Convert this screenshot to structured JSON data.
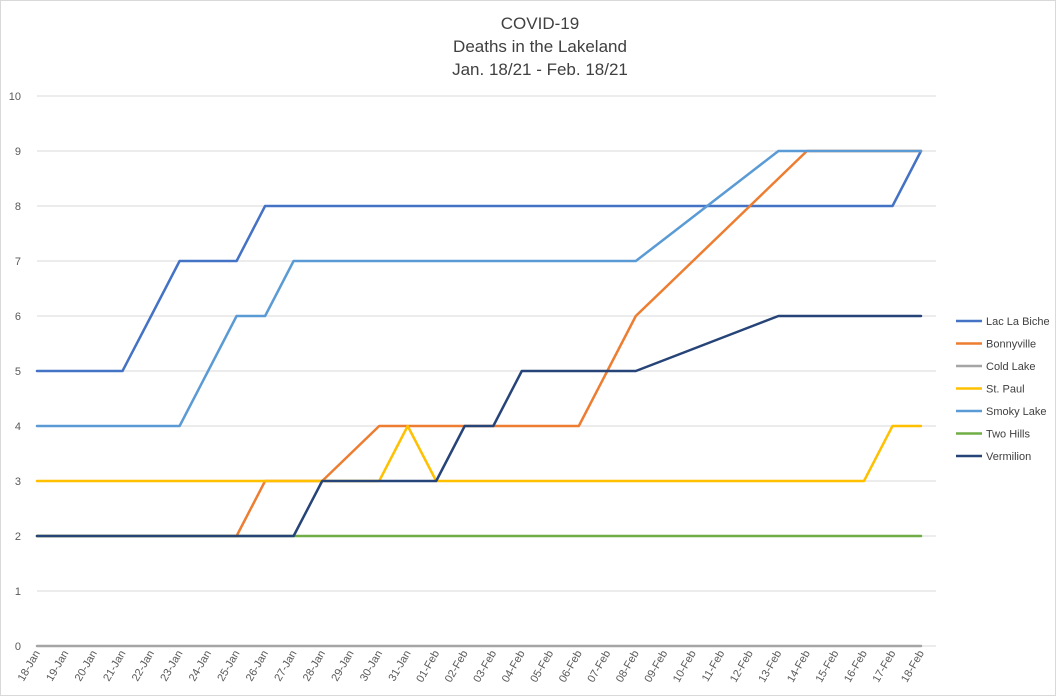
{
  "chart_data": {
    "type": "line",
    "title": [
      "COVID-19",
      "Deaths in the Lakeland",
      "Jan. 18/21 - Feb. 18/21"
    ],
    "xlabel": "",
    "ylabel": "",
    "ylim": [
      0,
      10
    ],
    "yticks": [
      "0",
      "1",
      "2",
      "3",
      "4",
      "5",
      "6",
      "7",
      "8",
      "9",
      "10"
    ],
    "grid": true,
    "legend_position": "right",
    "categories": [
      "18-Jan",
      "19-Jan",
      "20-Jan",
      "21-Jan",
      "22-Jan",
      "23-Jan",
      "24-Jan",
      "25-Jan",
      "26-Jan",
      "27-Jan",
      "28-Jan",
      "29-Jan",
      "30-Jan",
      "31-Jan",
      "01-Feb",
      "02-Feb",
      "03-Feb",
      "04-Feb",
      "05-Feb",
      "06-Feb",
      "07-Feb",
      "08-Feb",
      "09-Feb",
      "10-Feb",
      "11-Feb",
      "12-Feb",
      "13-Feb",
      "14-Feb",
      "15-Feb",
      "16-Feb",
      "17-Feb",
      "18-Feb"
    ],
    "series": [
      {
        "name": "Lac La Biche",
        "color": "#4472c4",
        "values": [
          5,
          5,
          5,
          5,
          6,
          7,
          7,
          7,
          8,
          8,
          8,
          8,
          8,
          8,
          8,
          8,
          8,
          8,
          8,
          8,
          8,
          8,
          8,
          8,
          8,
          8,
          8,
          8,
          8,
          8,
          8,
          9
        ]
      },
      {
        "name": "Bonnyville",
        "color": "#ed7d31",
        "values": [
          2,
          2,
          2,
          2,
          2,
          2,
          2,
          2,
          3,
          3,
          3,
          3.5,
          4,
          4,
          4,
          4,
          4,
          4,
          4,
          4,
          5,
          6,
          6.5,
          7,
          7.5,
          8,
          8.5,
          9,
          9,
          9,
          9,
          9
        ]
      },
      {
        "name": "Cold Lake",
        "color": "#a5a5a5",
        "values": [
          0,
          0,
          0,
          0,
          0,
          0,
          0,
          0,
          0,
          0,
          0,
          0,
          0,
          0,
          0,
          0,
          0,
          0,
          0,
          0,
          0,
          0,
          0,
          0,
          0,
          0,
          0,
          0,
          0,
          0,
          0,
          0
        ]
      },
      {
        "name": "St. Paul",
        "color": "#ffc000",
        "values": [
          3,
          3,
          3,
          3,
          3,
          3,
          3,
          3,
          3,
          3,
          3,
          3,
          3,
          4,
          3,
          3,
          3,
          3,
          3,
          3,
          3,
          3,
          3,
          3,
          3,
          3,
          3,
          3,
          3,
          3,
          4,
          4
        ]
      },
      {
        "name": "Smoky Lake",
        "color": "#5b9bd5",
        "values": [
          4,
          4,
          4,
          4,
          4,
          4,
          5,
          6,
          6,
          7,
          7,
          7,
          7,
          7,
          7,
          7,
          7,
          7,
          7,
          7,
          7,
          7,
          7.4,
          7.8,
          8.2,
          8.6,
          9,
          9,
          9,
          9,
          9,
          9
        ]
      },
      {
        "name": "Two Hills",
        "color": "#70ad47",
        "values": [
          2,
          2,
          2,
          2,
          2,
          2,
          2,
          2,
          2,
          2,
          2,
          2,
          2,
          2,
          2,
          2,
          2,
          2,
          2,
          2,
          2,
          2,
          2,
          2,
          2,
          2,
          2,
          2,
          2,
          2,
          2,
          2
        ]
      },
      {
        "name": "Vermilion",
        "color": "#264478",
        "values": [
          2,
          2,
          2,
          2,
          2,
          2,
          2,
          2,
          2,
          2,
          3,
          3,
          3,
          3,
          3,
          4,
          4,
          5,
          5,
          5,
          5,
          5,
          5.2,
          5.4,
          5.6,
          5.8,
          6,
          6,
          6,
          6,
          6,
          6
        ]
      }
    ]
  }
}
